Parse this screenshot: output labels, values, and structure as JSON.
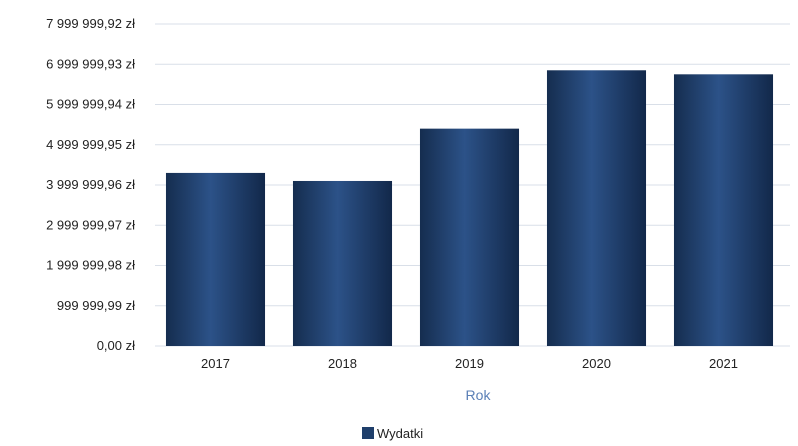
{
  "chart_data": {
    "type": "bar",
    "categories": [
      "2017",
      "2018",
      "2019",
      "2020",
      "2021"
    ],
    "series": [
      {
        "name": "Wydatki",
        "values": [
          4300000,
          4100000,
          5400000,
          6850000,
          6750000
        ]
      }
    ],
    "title": "",
    "xlabel": "Rok",
    "ylabel": "",
    "ylim": [
      0,
      7999999.92
    ],
    "y_ticks": [
      0,
      999999.99,
      1999999.98,
      2999999.97,
      3999999.96,
      4999999.95,
      5999999.94,
      6999999.93,
      7999999.92
    ],
    "y_tick_labels": [
      "0,00 zł",
      "999 999,99 zł",
      "1 999 999,98 zł",
      "2 999 999,97 zł",
      "3 999 999,96 zł",
      "4 999 999,95 zł",
      "5 999 999,94 zł",
      "6 999 999,93 zł",
      "7 999 999,92 zł"
    ],
    "grid": true,
    "legend_position": "bottom",
    "colors": {
      "bar": "#1f3f6b",
      "axis_title": "#5a7fb6",
      "grid": "#d9dfe8"
    }
  }
}
